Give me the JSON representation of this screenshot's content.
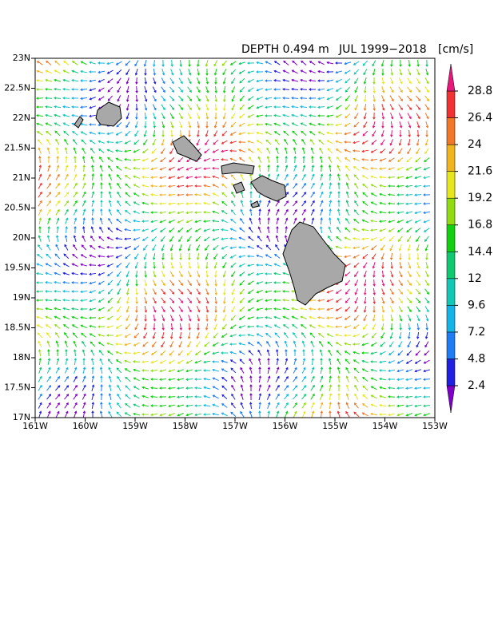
{
  "map": {
    "title": {
      "depth": "DEPTH  0.494 m",
      "period": "JUL  1999−2018",
      "unit": "[cm/s]"
    },
    "xlim": [
      -161,
      -153
    ],
    "ylim": [
      17,
      23
    ],
    "xticks": [
      {
        "value": -161,
        "label": "161W"
      },
      {
        "value": -160,
        "label": "160W"
      },
      {
        "value": -159,
        "label": "159W"
      },
      {
        "value": -158,
        "label": "158W"
      },
      {
        "value": -157,
        "label": "157W"
      },
      {
        "value": -156,
        "label": "156W"
      },
      {
        "value": -155,
        "label": "155W"
      },
      {
        "value": -154,
        "label": "154W"
      },
      {
        "value": -153,
        "label": "153W"
      }
    ],
    "yticks": [
      {
        "value": 17,
        "label": "17N"
      },
      {
        "value": 17.5,
        "label": "17.5N"
      },
      {
        "value": 18,
        "label": "18N"
      },
      {
        "value": 18.5,
        "label": "18.5N"
      },
      {
        "value": 19,
        "label": "19N"
      },
      {
        "value": 19.5,
        "label": "19.5N"
      },
      {
        "value": 20,
        "label": "20N"
      },
      {
        "value": 20.5,
        "label": "20.5N"
      },
      {
        "value": 21,
        "label": "21N"
      },
      {
        "value": 21.5,
        "label": "21.5N"
      },
      {
        "value": 22,
        "label": "22N"
      },
      {
        "value": 22.5,
        "label": "22.5N"
      },
      {
        "value": 23,
        "label": "23N"
      }
    ],
    "colorbar": {
      "ticks": [
        2.4,
        4.8,
        7.2,
        9.6,
        12,
        14.4,
        16.8,
        19.2,
        21.6,
        24,
        26.4,
        28.8
      ],
      "colors": [
        "#7f00c8",
        "#2020e0",
        "#1e7cf5",
        "#14b4e6",
        "#12c8b4",
        "#10c870",
        "#10d010",
        "#90dc10",
        "#e6e61e",
        "#f0b41e",
        "#f07828",
        "#f03232",
        "#e6187a"
      ]
    }
  }
}
